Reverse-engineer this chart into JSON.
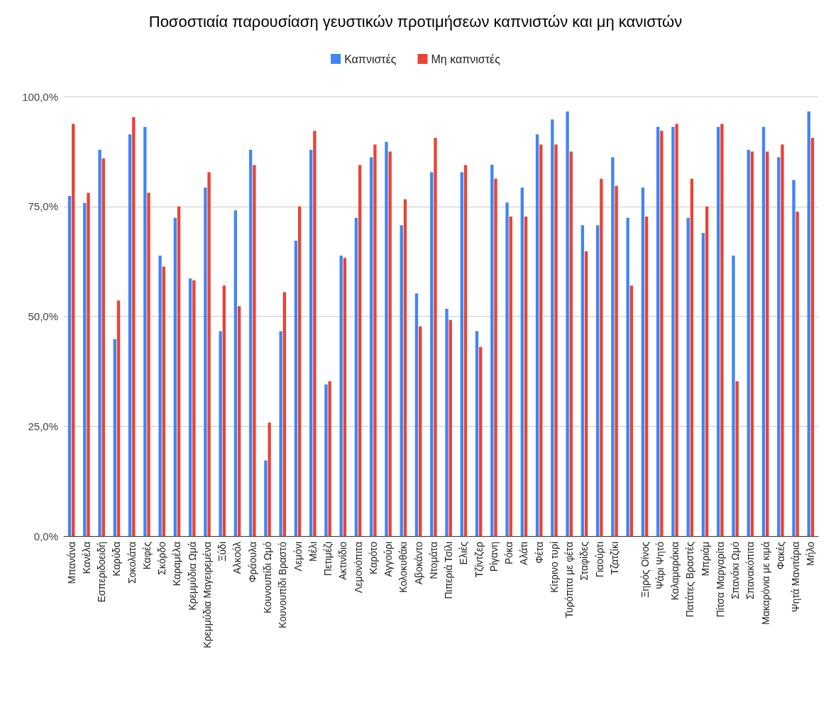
{
  "chart_data": {
    "type": "bar",
    "title": "Ποσοστιαία παρουσίαση γευστικών προτιμήσεων καπνιστών και μη κανιστών",
    "categories": [
      "Μπανάνα",
      "Κανέλα",
      "Εσπεριδοειδή",
      "Καρύδα",
      "Σοκολάτα",
      "Καφές",
      "Σκόρδο",
      "Καραμέλα",
      "Κρεμμύδια Ωμά",
      "Κρεμμύδια Μαγειρεμένα",
      "Ξύδι",
      "Αλκοόλ",
      "Φράουλα",
      "Κουνουπίδι Ωμό",
      "Κουνουπίδι Βραστό",
      "Λεμόνι",
      "Μέλι",
      "Πετιμέζι",
      "Ακτινίδιο",
      "Λεμονόπιτα",
      "Καρότο",
      "Αγγούρι",
      "Κολοκυθάκι",
      "Αβοκάντο",
      "Ντομάτα",
      "Πιπεριά Τσίλι",
      "Ελιές",
      "Τζίντζερ",
      "Ρίγανη",
      "Ρόκα",
      "Αλάτι",
      "Φέτα",
      "Κίτρινο τυρί",
      "Τυρόπιτα με φέτα",
      "Σταφίδες",
      "Γιαούρτι",
      "Τζατζίκι",
      null,
      "Ξηρός Οίνος",
      "Ψάρι Ψητό",
      "Καλαμαράκια",
      "Πατάτες Βραστές",
      "Μπριάμ",
      "Πίτσα Μαργαρίτα",
      "Σπανάκι Ωμό",
      "Σπανακόπιτα",
      "Μακαρόνια με κιμά",
      "Φακές",
      "Ψητά Μανιτάρια",
      "Μήλο"
    ],
    "series": [
      {
        "name": "Καπνιστές",
        "color": "#4285f4",
        "values": [
          77.4,
          75.8,
          87.9,
          44.8,
          91.4,
          93.1,
          63.8,
          72.4,
          58.6,
          79.3,
          46.6,
          74.1,
          87.9,
          17.2,
          46.6,
          67.2,
          87.9,
          34.5,
          63.8,
          72.4,
          86.2,
          89.7,
          70.7,
          55.2,
          82.8,
          51.7,
          82.8,
          46.6,
          84.5,
          75.9,
          79.3,
          91.4,
          94.8,
          96.6,
          70.7,
          70.7,
          86.2,
          72.4,
          79.3,
          93.1,
          93.1,
          72.4,
          69.0,
          93.1,
          63.8,
          87.9,
          93.1,
          86.2,
          81.0,
          96.6
        ]
      },
      {
        "name": "Μη καπνιστές",
        "color": "#ea4335",
        "values": [
          93.8,
          78.1,
          85.9,
          53.6,
          95.3,
          78.1,
          61.3,
          75.0,
          58.2,
          82.8,
          57.0,
          52.3,
          84.4,
          25.8,
          55.5,
          75.0,
          92.2,
          35.2,
          63.3,
          84.4,
          89.1,
          87.5,
          76.6,
          47.7,
          90.6,
          49.2,
          84.4,
          43.0,
          81.3,
          72.7,
          72.7,
          89.1,
          89.1,
          87.5,
          64.8,
          81.3,
          79.7,
          57.0,
          72.7,
          92.2,
          93.8,
          81.3,
          75.0,
          93.8,
          35.2,
          87.5,
          87.5,
          89.1,
          73.8,
          90.6
        ]
      }
    ],
    "ylim": [
      0,
      100
    ],
    "yticks": [
      {
        "value": 0,
        "label": "0,0%"
      },
      {
        "value": 25,
        "label": "25,0%"
      },
      {
        "value": 50,
        "label": "50,0%"
      },
      {
        "value": 75,
        "label": "75,0%"
      },
      {
        "value": 100,
        "label": "100,0%"
      }
    ],
    "grid": "y",
    "legend": "top"
  }
}
